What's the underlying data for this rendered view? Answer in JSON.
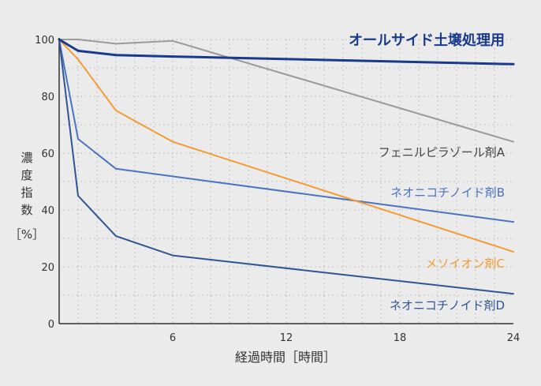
{
  "chart_data": {
    "type": "line",
    "xlabel": "経過時間［時間］",
    "ylabel_chars": [
      "濃",
      "度",
      "指",
      "数"
    ],
    "ylabel_unit": "［%］",
    "xlim": [
      0,
      24
    ],
    "ylim": [
      0,
      100
    ],
    "x_ticks": [
      6,
      12,
      18,
      24
    ],
    "y_ticks": [
      0,
      20,
      40,
      60,
      80,
      100
    ],
    "grid": true,
    "series": [
      {
        "name": "オールサイド土壌処理用",
        "color": "#1a3a8c",
        "width": 3,
        "label_emphasis": true,
        "points": [
          [
            0,
            100
          ],
          [
            1,
            96
          ],
          [
            3,
            94.5
          ],
          [
            6,
            94
          ],
          [
            24,
            91.3
          ]
        ]
      },
      {
        "name": "フェニルピラゾール剤A",
        "color": "#9a9a9a",
        "width": 2,
        "points": [
          [
            0,
            100
          ],
          [
            1,
            100
          ],
          [
            3,
            98.5
          ],
          [
            6,
            99.5
          ],
          [
            24,
            64
          ]
        ]
      },
      {
        "name": "ネオニコチノイド剤B",
        "color": "#4a74c0",
        "width": 2,
        "points": [
          [
            0,
            100
          ],
          [
            1,
            65
          ],
          [
            3,
            54.5
          ],
          [
            24,
            35.8
          ]
        ]
      },
      {
        "name": "メソイオン剤C",
        "color": "#f39c33",
        "width": 2,
        "points": [
          [
            0,
            100
          ],
          [
            1,
            93
          ],
          [
            3,
            75
          ],
          [
            6,
            64
          ],
          [
            24,
            25.3
          ]
        ]
      },
      {
        "name": "ネオニコチノイド剤D",
        "color": "#2f5594",
        "width": 2,
        "points": [
          [
            0,
            100
          ],
          [
            1,
            45
          ],
          [
            3,
            30.8
          ],
          [
            6,
            24
          ],
          [
            24,
            10.5
          ]
        ]
      }
    ]
  }
}
